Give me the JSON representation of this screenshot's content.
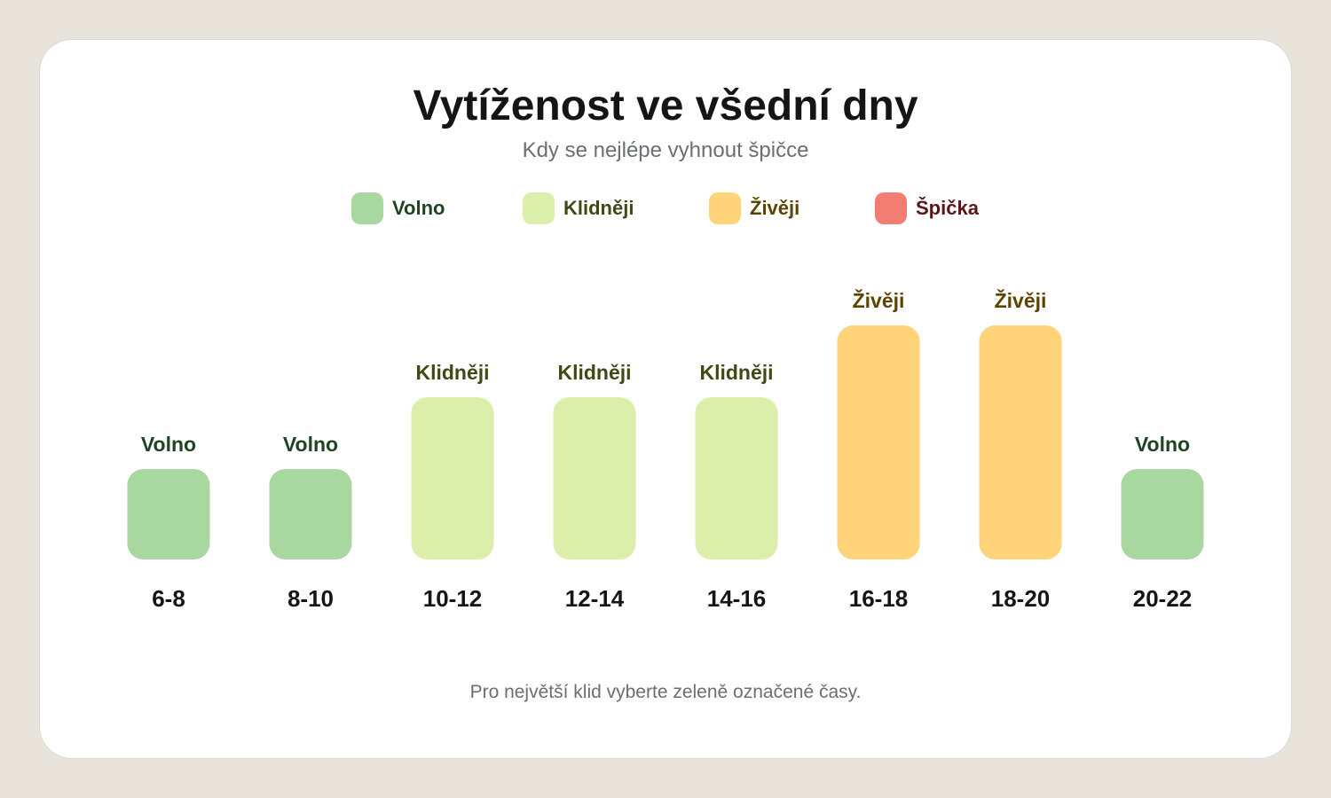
{
  "chart_data": {
    "type": "bar",
    "title": "Vytíženost ve všední dny",
    "subtitle": "Kdy se nejlépe vyhnout špičce",
    "footnote": "Pro největší klid vyberte zeleně označené časy.",
    "legend": [
      {
        "name": "Volno",
        "color": "#a8d8a0",
        "text_color": "#1f4424"
      },
      {
        "name": "Klidněji",
        "color": "#dcefaa",
        "text_color": "#3e4a14"
      },
      {
        "name": "Živěji",
        "color": "#ffd47a",
        "text_color": "#5c4300"
      },
      {
        "name": "Špička",
        "color": "#f27d72",
        "text_color": "#5c1414"
      }
    ],
    "categories": [
      "6-8",
      "8-10",
      "10-12",
      "12-14",
      "14-16",
      "16-18",
      "18-20",
      "20-22"
    ],
    "values": [
      1,
      1,
      2,
      2,
      2,
      3,
      3,
      1
    ],
    "labels": [
      "Volno",
      "Volno",
      "Klidněji",
      "Klidněji",
      "Klidněji",
      "Živěji",
      "Živěji",
      "Volno"
    ],
    "ylim": [
      0,
      4
    ]
  }
}
